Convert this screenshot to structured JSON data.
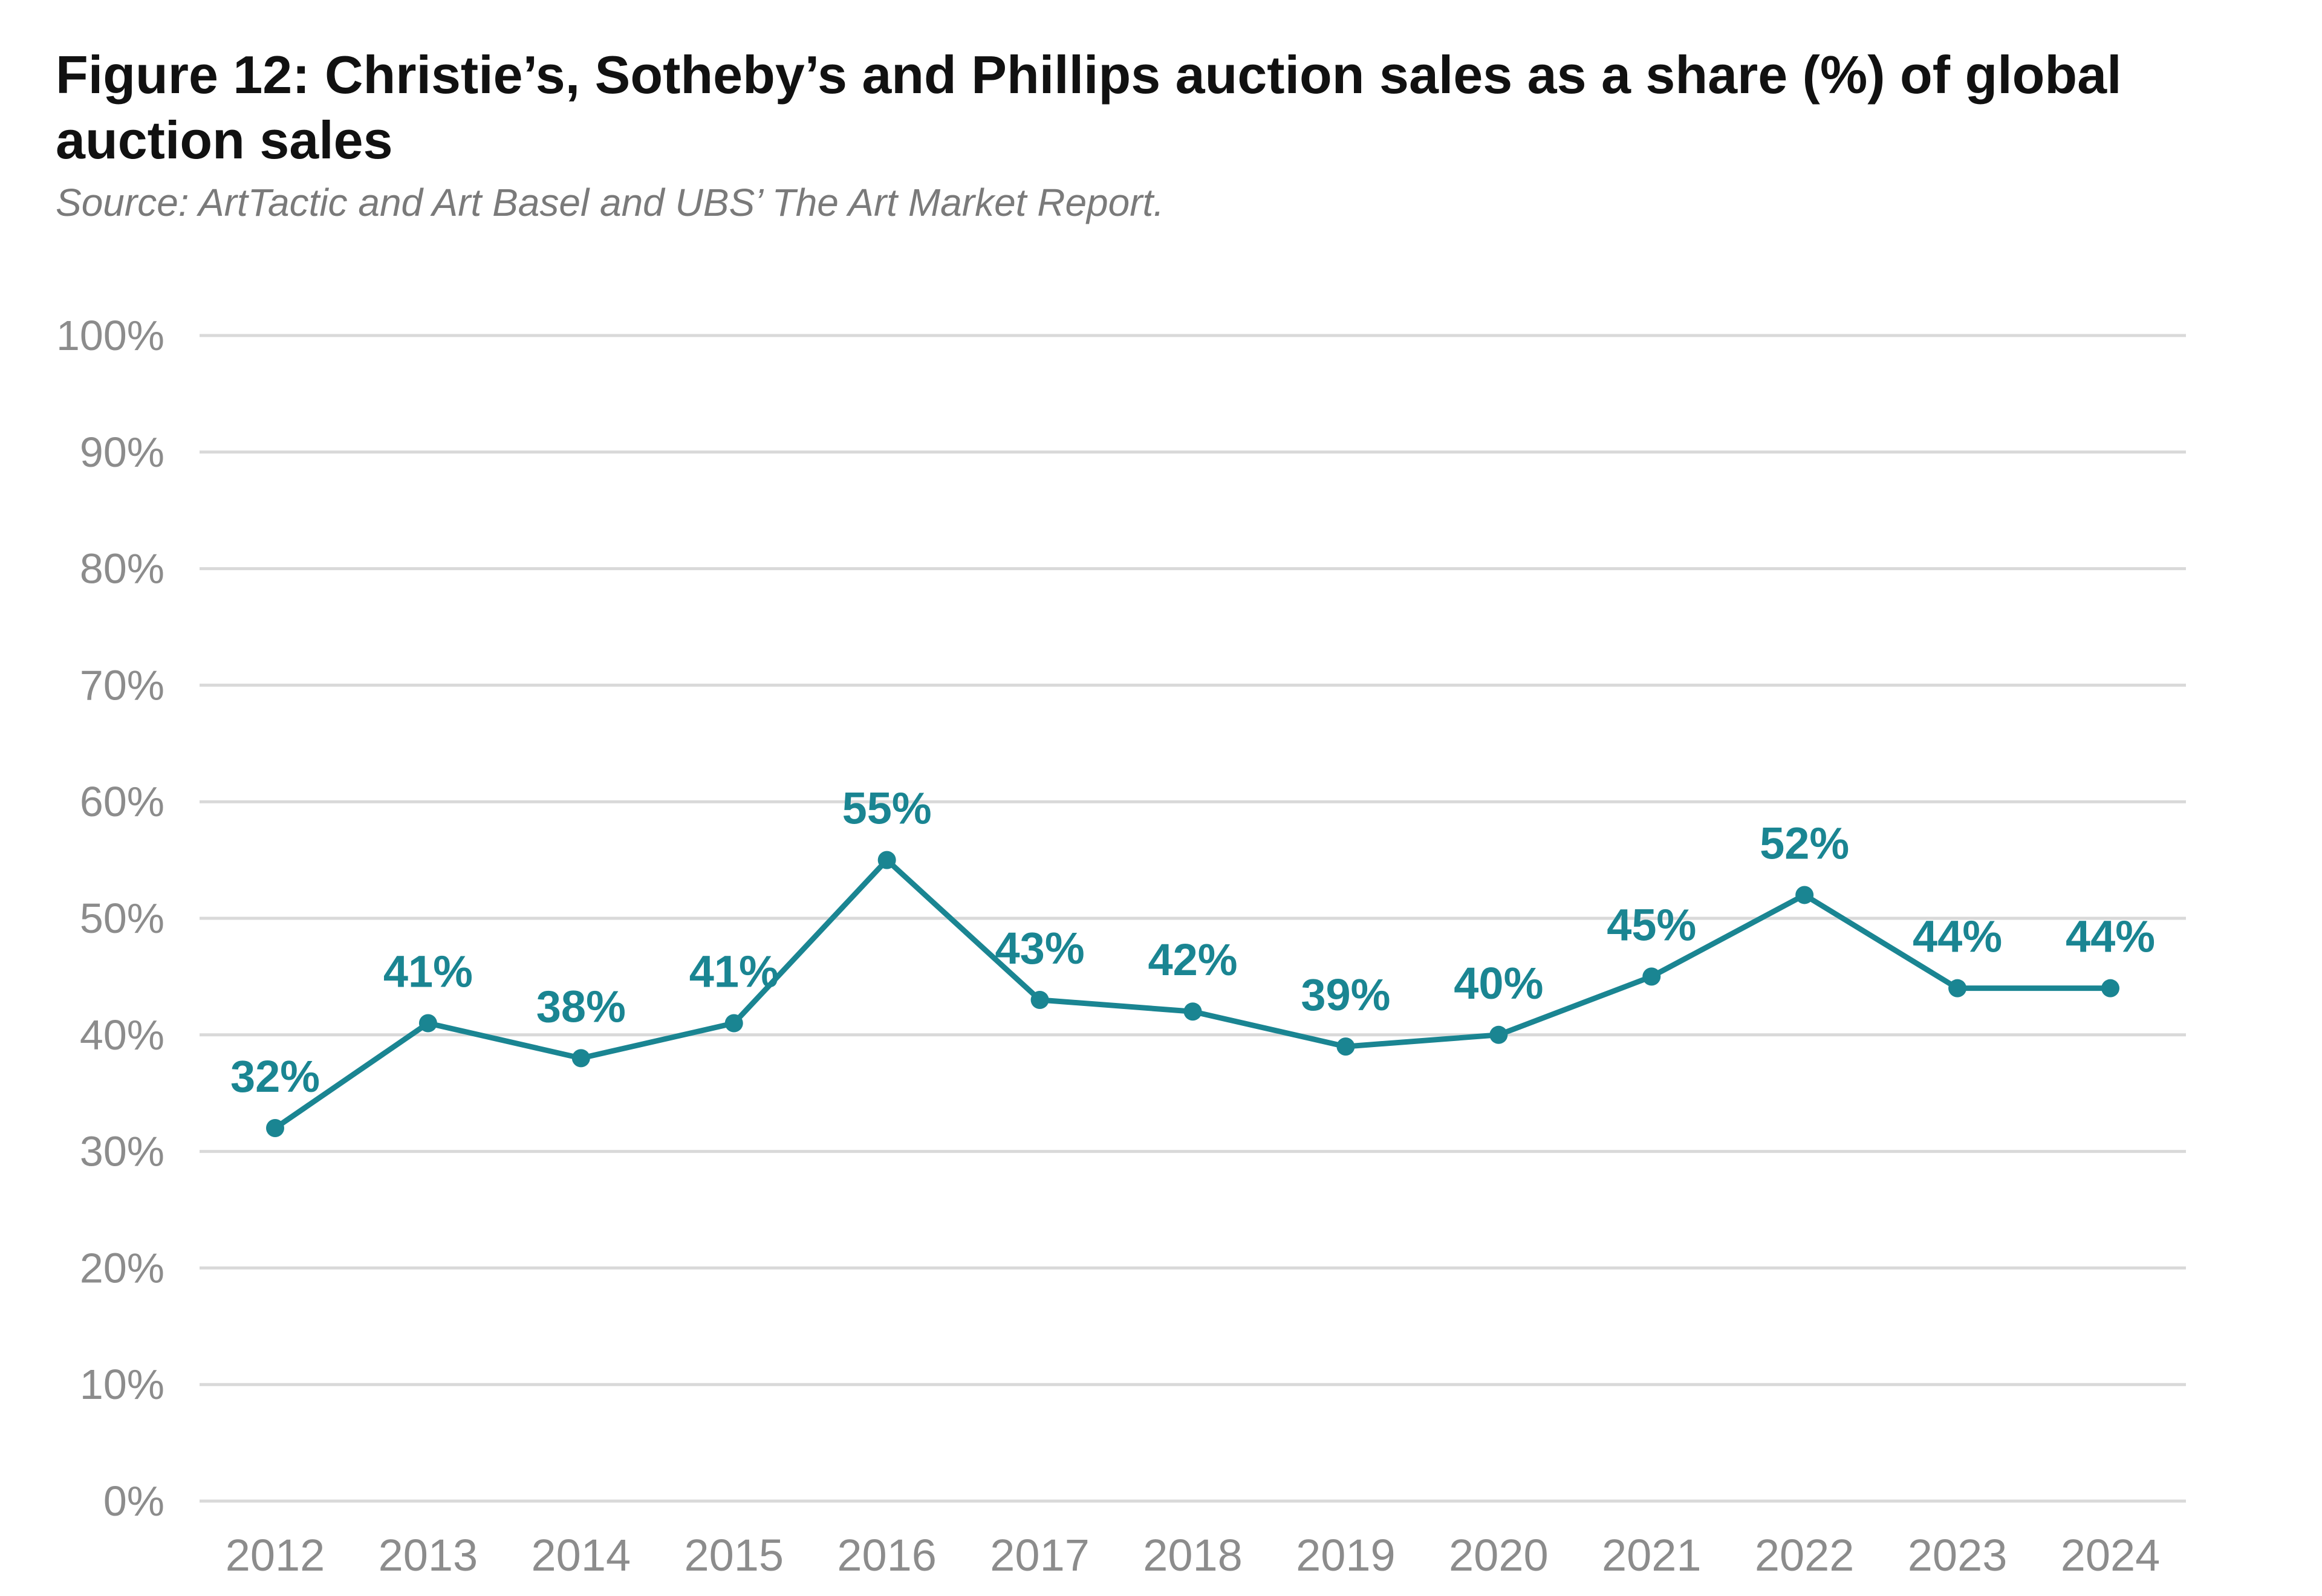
{
  "title": "Figure 12: Christie’s, Sotheby’s and Phillips auction sales as a share (%) of global auction sales",
  "subtitle": "Source: ArtTactic and Art Basel and UBS’ The Art Market Report.",
  "colors": {
    "series": "#1a8592",
    "grid": "#d9d9d9",
    "tick_text": "#8c8c8c"
  },
  "chart_data": {
    "type": "line",
    "title": "Figure 12: Christie’s, Sotheby’s and Phillips auction sales as a share (%) of global auction sales",
    "xlabel": "",
    "ylabel": "",
    "x": [
      "2012",
      "2013",
      "2014",
      "2015",
      "2016",
      "2017",
      "2018",
      "2019",
      "2020",
      "2021",
      "2022",
      "2023",
      "2024"
    ],
    "series": [
      {
        "values": [
          32,
          41,
          38,
          41,
          55,
          43,
          42,
          39,
          40,
          45,
          52,
          44,
          44
        ],
        "labels": [
          "32%",
          "41%",
          "38%",
          "41%",
          "55%",
          "43%",
          "42%",
          "39%",
          "40%",
          "45%",
          "52%",
          "44%",
          "44%"
        ]
      }
    ],
    "ylim": [
      0,
      100
    ],
    "y_ticks": [
      0,
      10,
      20,
      30,
      40,
      50,
      60,
      70,
      80,
      90,
      100
    ],
    "y_tick_labels": [
      "0%",
      "10%",
      "20%",
      "30%",
      "40%",
      "50%",
      "60%",
      "70%",
      "80%",
      "90%",
      "100%"
    ],
    "grid": true,
    "legend": "none"
  }
}
